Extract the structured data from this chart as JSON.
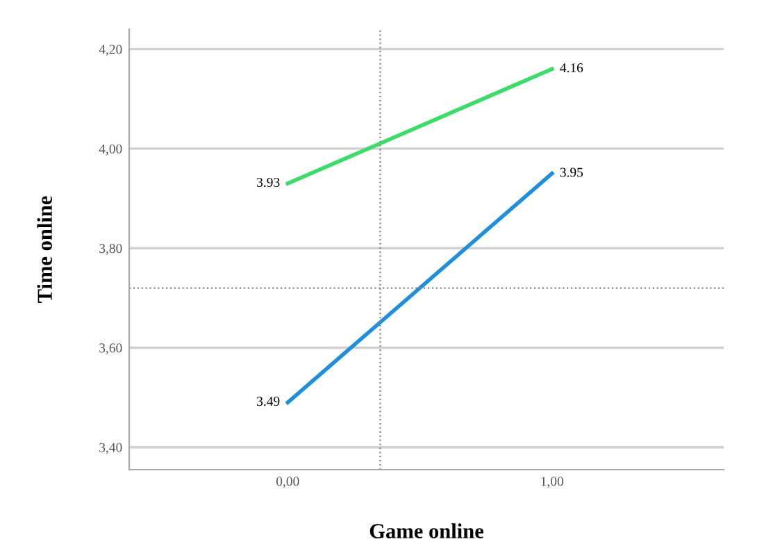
{
  "chart_data": {
    "type": "line",
    "xlabel": "Game online",
    "ylabel": "Time online",
    "x": [
      0,
      1
    ],
    "series": [
      {
        "color": "#3ddc6a",
        "values": [
          3.93,
          4.16
        ]
      },
      {
        "color": "#1f8fdc",
        "values": [
          3.49,
          3.95
        ]
      }
    ],
    "data_labels": true,
    "xlim": [
      -0.6,
      1.65
    ],
    "xticks": [
      {
        "value": 0,
        "label": "0,00"
      },
      {
        "value": 1,
        "label": "1,00"
      }
    ],
    "ylim": [
      3.355,
      4.24
    ],
    "yticks": [
      {
        "value": 3.4,
        "label": "3,40"
      },
      {
        "value": 3.6,
        "label": "3,60"
      },
      {
        "value": 3.8,
        "label": "3,80"
      },
      {
        "value": 4.0,
        "label": "4,00"
      },
      {
        "value": 4.2,
        "label": "4,20"
      }
    ],
    "grid": "y",
    "ref_lines": [
      {
        "axis": "x",
        "value": 0.35,
        "color": "#888888",
        "line_style": "dotted"
      },
      {
        "axis": "y",
        "value": 3.72,
        "color": "#888888",
        "line_style": "dotted"
      }
    ]
  }
}
